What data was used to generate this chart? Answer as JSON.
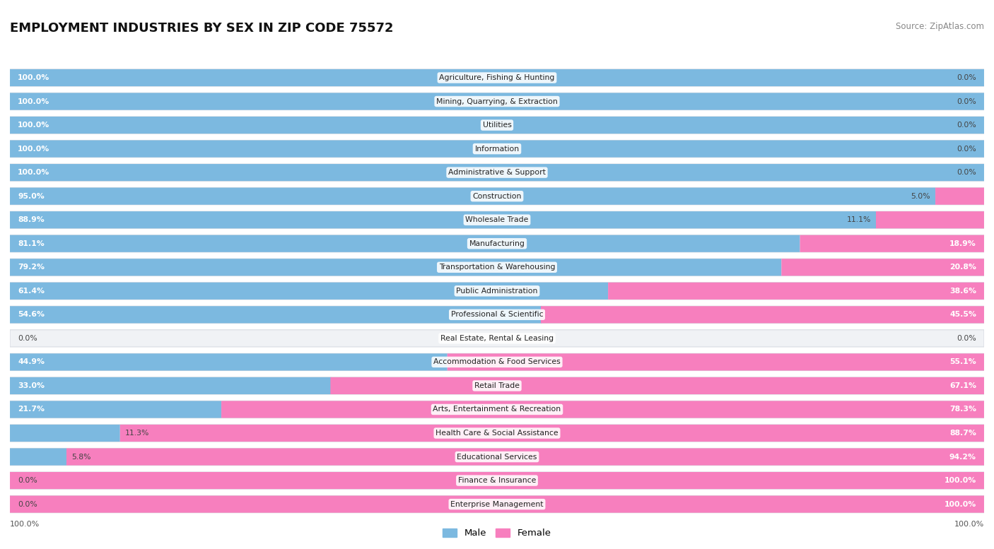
{
  "title": "EMPLOYMENT INDUSTRIES BY SEX IN ZIP CODE 75572",
  "source": "Source: ZipAtlas.com",
  "male_color": "#7cb9e0",
  "female_color": "#f77fbe",
  "row_bg_color": "#f0f2f5",
  "row_border_color": "#d8dce2",
  "industries": [
    {
      "name": "Agriculture, Fishing & Hunting",
      "male": 100.0,
      "female": 0.0
    },
    {
      "name": "Mining, Quarrying, & Extraction",
      "male": 100.0,
      "female": 0.0
    },
    {
      "name": "Utilities",
      "male": 100.0,
      "female": 0.0
    },
    {
      "name": "Information",
      "male": 100.0,
      "female": 0.0
    },
    {
      "name": "Administrative & Support",
      "male": 100.0,
      "female": 0.0
    },
    {
      "name": "Construction",
      "male": 95.0,
      "female": 5.0
    },
    {
      "name": "Wholesale Trade",
      "male": 88.9,
      "female": 11.1
    },
    {
      "name": "Manufacturing",
      "male": 81.1,
      "female": 18.9
    },
    {
      "name": "Transportation & Warehousing",
      "male": 79.2,
      "female": 20.8
    },
    {
      "name": "Public Administration",
      "male": 61.4,
      "female": 38.6
    },
    {
      "name": "Professional & Scientific",
      "male": 54.6,
      "female": 45.5
    },
    {
      "name": "Real Estate, Rental & Leasing",
      "male": 0.0,
      "female": 0.0
    },
    {
      "name": "Accommodation & Food Services",
      "male": 44.9,
      "female": 55.1
    },
    {
      "name": "Retail Trade",
      "male": 33.0,
      "female": 67.1
    },
    {
      "name": "Arts, Entertainment & Recreation",
      "male": 21.7,
      "female": 78.3
    },
    {
      "name": "Health Care & Social Assistance",
      "male": 11.3,
      "female": 88.7
    },
    {
      "name": "Educational Services",
      "male": 5.8,
      "female": 94.2
    },
    {
      "name": "Finance & Insurance",
      "male": 0.0,
      "female": 100.0
    },
    {
      "name": "Enterprise Management",
      "male": 0.0,
      "female": 100.0
    }
  ]
}
